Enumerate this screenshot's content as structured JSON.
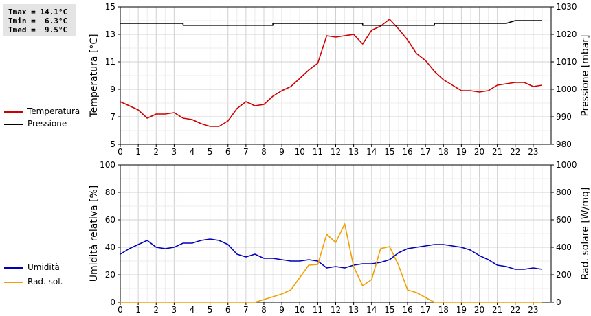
{
  "stats": {
    "tmax": "Tmax = 14.1°C",
    "tmin": "Tmin =  6.3°C",
    "tmed": "Tmed =  9.5°C"
  },
  "legend": {
    "top": [
      {
        "name": "Temperatura",
        "color": "#cc0000"
      },
      {
        "name": "Pressione",
        "color": "#000000"
      }
    ],
    "bottom": [
      {
        "name": "Umidità",
        "color": "#0000bb"
      },
      {
        "name": "Rad. sol.",
        "color": "#f0a000"
      }
    ]
  },
  "chart_data": [
    {
      "type": "line",
      "x_ticks": [
        0,
        1,
        2,
        3,
        4,
        5,
        6,
        7,
        8,
        9,
        10,
        11,
        12,
        13,
        14,
        15,
        16,
        17,
        18,
        19,
        20,
        21,
        22,
        23
      ],
      "xlim": [
        0,
        24
      ],
      "grid": true,
      "y_left": {
        "label": "Temperatura [°C]",
        "lim": [
          5,
          15
        ],
        "ticks": [
          5,
          7,
          9,
          11,
          13,
          15
        ]
      },
      "y_right": {
        "label": "Pressione [mbar]",
        "lim": [
          980,
          1030
        ],
        "ticks": [
          980,
          990,
          1000,
          1010,
          1020,
          1030
        ]
      },
      "series": [
        {
          "name": "Temperatura",
          "axis": "left",
          "color": "#cc0000",
          "x": [
            0,
            0.5,
            1,
            1.5,
            2,
            2.5,
            3,
            3.5,
            4,
            4.5,
            5,
            5.5,
            6,
            6.5,
            7,
            7.5,
            8,
            8.5,
            9,
            9.5,
            10,
            10.5,
            11,
            11.5,
            12,
            12.5,
            13,
            13.5,
            14,
            14.5,
            15,
            15.5,
            16,
            16.5,
            17,
            17.5,
            18,
            18.5,
            19,
            19.5,
            20,
            20.5,
            21,
            21.5,
            22,
            22.5,
            23,
            23.5
          ],
          "values": [
            8.1,
            7.8,
            7.5,
            6.9,
            7.2,
            7.2,
            7.3,
            6.9,
            6.8,
            6.5,
            6.3,
            6.3,
            6.7,
            7.6,
            8.1,
            7.8,
            7.9,
            8.5,
            8.9,
            9.2,
            9.8,
            10.4,
            10.9,
            12.9,
            12.8,
            12.9,
            13.0,
            12.3,
            13.3,
            13.6,
            14.1,
            13.4,
            12.6,
            11.6,
            11.1,
            10.3,
            9.7,
            9.3,
            8.9,
            8.9,
            8.8,
            8.9,
            9.3,
            9.4,
            9.5,
            9.5,
            9.2,
            9.3
          ]
        },
        {
          "name": "Pressione",
          "axis": "right",
          "color": "#000000",
          "x": [
            0,
            3.5,
            3.5,
            8.5,
            8.5,
            13.5,
            13.5,
            17.5,
            17.5,
            21.5,
            22,
            23.5
          ],
          "values": [
            1024,
            1024,
            1023.3,
            1023.3,
            1024,
            1024,
            1023.3,
            1023.3,
            1024,
            1024,
            1025,
            1025
          ]
        }
      ]
    },
    {
      "type": "line",
      "x_ticks": [
        0,
        1,
        2,
        3,
        4,
        5,
        6,
        7,
        8,
        9,
        10,
        11,
        12,
        13,
        14,
        15,
        16,
        17,
        18,
        19,
        20,
        21,
        22,
        23
      ],
      "xlim": [
        0,
        24
      ],
      "grid": true,
      "y_left": {
        "label": "Umidità relativa [%]",
        "lim": [
          0,
          100
        ],
        "ticks": [
          0,
          20,
          40,
          60,
          80,
          100
        ]
      },
      "y_right": {
        "label": "Rad. solare [W/mq]",
        "lim": [
          0,
          1000
        ],
        "ticks": [
          0,
          200,
          400,
          600,
          800,
          1000
        ]
      },
      "series": [
        {
          "name": "Umidità",
          "axis": "left",
          "color": "#0000bb",
          "x": [
            0,
            0.5,
            1,
            1.5,
            2,
            2.5,
            3,
            3.5,
            4,
            4.5,
            5,
            5.5,
            6,
            6.5,
            7,
            7.5,
            8,
            8.5,
            9,
            9.5,
            10,
            10.5,
            11,
            11.5,
            12,
            12.5,
            13,
            13.5,
            14,
            14.5,
            15,
            15.5,
            16,
            16.5,
            17,
            17.5,
            18,
            18.5,
            19,
            19.5,
            20,
            20.5,
            21,
            21.5,
            22,
            22.5,
            23,
            23.5
          ],
          "values": [
            35,
            39,
            42,
            45,
            40,
            39,
            40,
            43,
            43,
            45,
            46,
            45,
            42,
            35,
            33,
            35,
            32,
            32,
            31,
            30,
            30,
            31,
            30,
            25,
            26,
            25,
            27,
            28,
            28,
            29,
            31,
            36,
            39,
            40,
            41,
            42,
            42,
            41,
            40,
            38,
            34,
            31,
            27,
            26,
            24,
            24,
            25,
            24
          ]
        },
        {
          "name": "Rad. sol.",
          "axis": "right",
          "color": "#f0a000",
          "x": [
            0,
            7.5,
            8,
            8.5,
            9,
            9.5,
            10,
            10.5,
            11,
            11.5,
            12,
            12.5,
            13,
            13.5,
            14,
            14.5,
            15,
            15.5,
            16,
            16.5,
            17,
            17.5,
            23.5
          ],
          "values": [
            0,
            0,
            20,
            40,
            60,
            90,
            180,
            270,
            275,
            495,
            435,
            570,
            260,
            120,
            165,
            390,
            405,
            270,
            90,
            70,
            35,
            0,
            0
          ]
        }
      ]
    }
  ]
}
